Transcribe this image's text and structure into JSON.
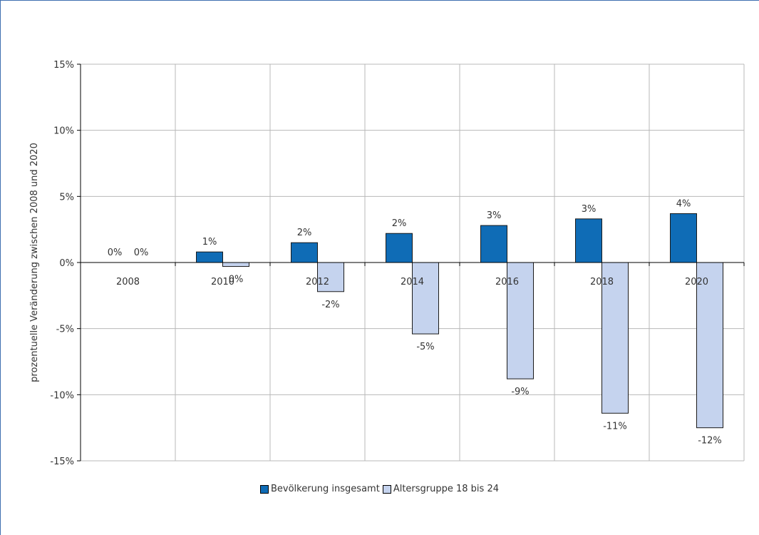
{
  "chart_data": {
    "type": "bar",
    "categories": [
      "2008",
      "2010",
      "2012",
      "2014",
      "2016",
      "2018",
      "2020"
    ],
    "series": [
      {
        "name": "Bevölkerung insgesamt",
        "values": [
          0.0,
          0.8,
          1.5,
          2.2,
          2.8,
          3.3,
          3.7
        ],
        "labels": [
          "0%",
          "1%",
          "2%",
          "2%",
          "3%",
          "3%",
          "4%"
        ],
        "color": "#0f6cb6"
      },
      {
        "name": "Altersgruppe 18 bis 24",
        "values": [
          0.0,
          -0.3,
          -2.2,
          -5.4,
          -8.8,
          -11.4,
          -12.5
        ],
        "labels": [
          "0%",
          "0%",
          "-2%",
          "-5%",
          "-9%",
          "-11%",
          "-12%"
        ],
        "color": "#c5d3ee"
      }
    ],
    "ylim": [
      -15,
      15
    ],
    "yticks": [
      15,
      10,
      5,
      0,
      -5,
      -10,
      -15
    ],
    "ytick_labels": [
      "15%",
      "10%",
      "5%",
      "0%",
      "-5%",
      "-10%",
      "-15%"
    ],
    "ylabel": "prozentuelle Veränderung zwischen 2008 und 2020",
    "xlabel": "",
    "title": "",
    "grid": true,
    "legend_position": "bottom"
  }
}
